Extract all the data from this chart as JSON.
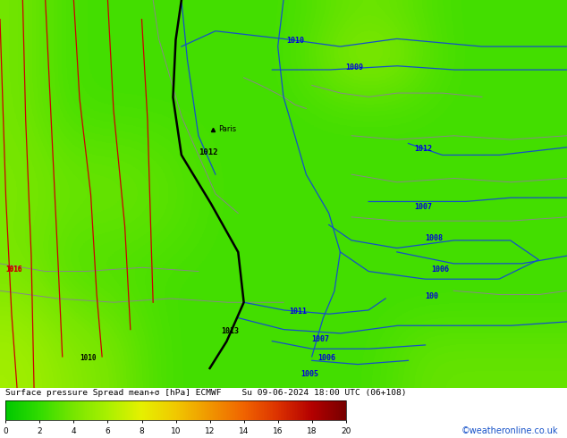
{
  "title_line": "Surface pressure Spread mean+σ [hPa] ECMWF    Su 09-06-2024 18:00 UTC (06+108)",
  "watermark": "©weatheronline.co.uk",
  "colorbar_ticks": [
    0,
    2,
    4,
    6,
    8,
    10,
    12,
    14,
    16,
    18,
    20
  ],
  "colorbar_colors": [
    "#00c800",
    "#32dc00",
    "#78e600",
    "#aaf000",
    "#e6f000",
    "#f0c800",
    "#f09600",
    "#f06400",
    "#dc3200",
    "#b40000",
    "#780000"
  ],
  "map_bg": "#64dc00",
  "fig_width": 6.34,
  "fig_height": 4.9,
  "dpi": 100,
  "label_blue": "#0000dc",
  "label_black": "#000000",
  "label_red": "#cc0000"
}
